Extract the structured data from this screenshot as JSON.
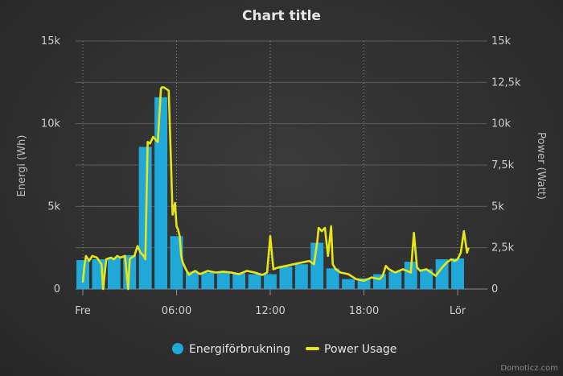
{
  "chart_data": {
    "type": "bar+line",
    "title": "Chart title",
    "x_tick_labels": [
      "Fre",
      "06:00",
      "12:00",
      "18:00",
      "Lör"
    ],
    "x_tick_hours": [
      0,
      6,
      12,
      18,
      24
    ],
    "y_left": {
      "label": "Energi (Wh)",
      "ticks": [
        "0",
        "5k",
        "10k",
        "15k"
      ],
      "tick_values": [
        0,
        5000,
        10000,
        15000
      ],
      "lim": [
        0,
        15000
      ]
    },
    "y_right": {
      "label": "Power (Watt)",
      "ticks": [
        "0",
        "2,5k",
        "5k",
        "7,5k",
        "10k",
        "12,5k",
        "15k"
      ],
      "tick_values": [
        0,
        2500,
        5000,
        7500,
        10000,
        12500,
        15000
      ],
      "lim": [
        0,
        15000
      ]
    },
    "grid": true,
    "legend_position": "bottom-center",
    "colors": {
      "bars": "#1fa8d8",
      "line": "#e6e619",
      "grid": "#5a5a5a",
      "background": "#333333"
    },
    "series": [
      {
        "name": "Energiförbrukning",
        "kind": "bar",
        "axis": "left",
        "x": [
          0,
          1,
          2,
          3,
          4,
          5,
          6,
          7,
          8,
          9,
          10,
          11,
          12,
          13,
          14,
          15,
          16,
          17,
          18,
          19,
          20,
          21,
          22,
          23,
          24
        ],
        "values": [
          1750,
          1800,
          1900,
          2050,
          8600,
          11600,
          3200,
          1050,
          1000,
          1000,
          950,
          900,
          900,
          1350,
          1500,
          2800,
          1250,
          600,
          650,
          900,
          1050,
          1650,
          1200,
          1800,
          1850
        ]
      },
      {
        "name": "Power Usage",
        "kind": "line",
        "axis": "right",
        "x": [
          0,
          0.1,
          0.2,
          0.4,
          0.6,
          0.9,
          1.2,
          1.3,
          1.5,
          1.8,
          2.0,
          2.2,
          2.4,
          2.7,
          2.9,
          3.0,
          3.1,
          3.3,
          3.5,
          3.7,
          3.9,
          4.0,
          4.15,
          4.3,
          4.5,
          4.8,
          5.0,
          5.05,
          5.2,
          5.5,
          5.75,
          5.9,
          6.0,
          6.1,
          6.2,
          6.3,
          6.4,
          6.6,
          6.8,
          7.0,
          7.2,
          7.5,
          8.0,
          8.5,
          9.0,
          9.5,
          10.0,
          10.5,
          11.0,
          11.5,
          11.8,
          12.0,
          12.2,
          12.5,
          13.0,
          13.5,
          14.0,
          14.5,
          14.8,
          15.0,
          15.1,
          15.3,
          15.5,
          15.7,
          15.9,
          16.0,
          16.2,
          16.5,
          17.0,
          17.5,
          18.0,
          18.5,
          19.0,
          19.2,
          19.4,
          19.6,
          20.0,
          20.5,
          21.0,
          21.2,
          21.4,
          21.6,
          22.0,
          22.3,
          22.6,
          23.0,
          23.3,
          23.6,
          23.8,
          24.0,
          24.2,
          24.4,
          24.6,
          24.7
        ],
        "values": [
          400,
          1400,
          2000,
          1700,
          2000,
          1900,
          1500,
          0,
          1800,
          1900,
          1800,
          2000,
          1900,
          2000,
          0,
          1800,
          1900,
          2000,
          2600,
          2200,
          2000,
          1800,
          8900,
          8800,
          9200,
          8900,
          12100,
          12200,
          12200,
          12000,
          4500,
          5200,
          3800,
          3600,
          3200,
          2000,
          1600,
          1200,
          850,
          1000,
          1100,
          900,
          1100,
          1000,
          1050,
          1000,
          900,
          1100,
          1000,
          850,
          1000,
          3200,
          1200,
          1300,
          1400,
          1500,
          1600,
          1700,
          1500,
          2800,
          3700,
          3500,
          3700,
          2000,
          3800,
          1500,
          1200,
          1000,
          900,
          600,
          500,
          700,
          600,
          800,
          1400,
          1200,
          1000,
          1200,
          1000,
          3400,
          1300,
          1100,
          1200,
          1000,
          800,
          1300,
          1600,
          1800,
          1700,
          1800,
          2200,
          3500,
          2200,
          2500
        ]
      }
    ]
  },
  "credit": "Domoticz.com"
}
